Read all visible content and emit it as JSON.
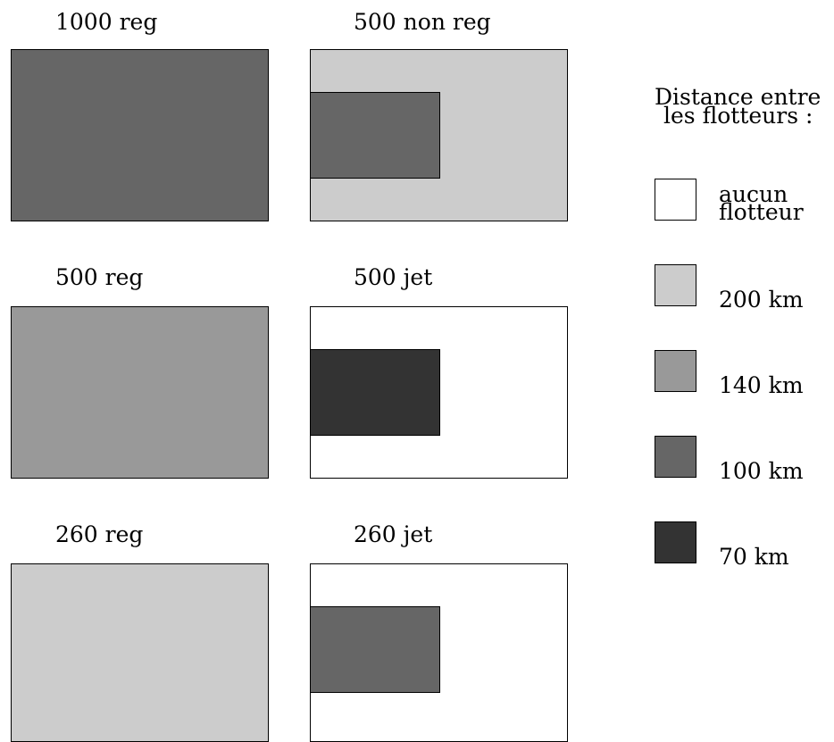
{
  "panels": [
    {
      "title": "1000 reg",
      "fill": "#666666",
      "inner": null
    },
    {
      "title": "500 non reg",
      "fill": "#cccccc",
      "inner": "#666666"
    },
    {
      "title": "500 reg",
      "fill": "#999999",
      "inner": null
    },
    {
      "title": "500 jet",
      "fill": "#ffffff",
      "inner": "#333333"
    },
    {
      "title": "260 reg",
      "fill": "#cccccc",
      "inner": null
    },
    {
      "title": "260 jet",
      "fill": "#ffffff",
      "inner": "#666666"
    }
  ],
  "legend": {
    "title_line1": "Distance entre",
    "title_line2": "les flotteurs :",
    "items": [
      {
        "line1": "aucun",
        "line2": "flotteur",
        "color": "#ffffff"
      },
      {
        "label": "200 km",
        "color": "#cccccc"
      },
      {
        "label": "140 km",
        "color": "#999999"
      },
      {
        "label": "100 km",
        "color": "#666666"
      },
      {
        "label": "70 km",
        "color": "#333333"
      }
    ]
  }
}
